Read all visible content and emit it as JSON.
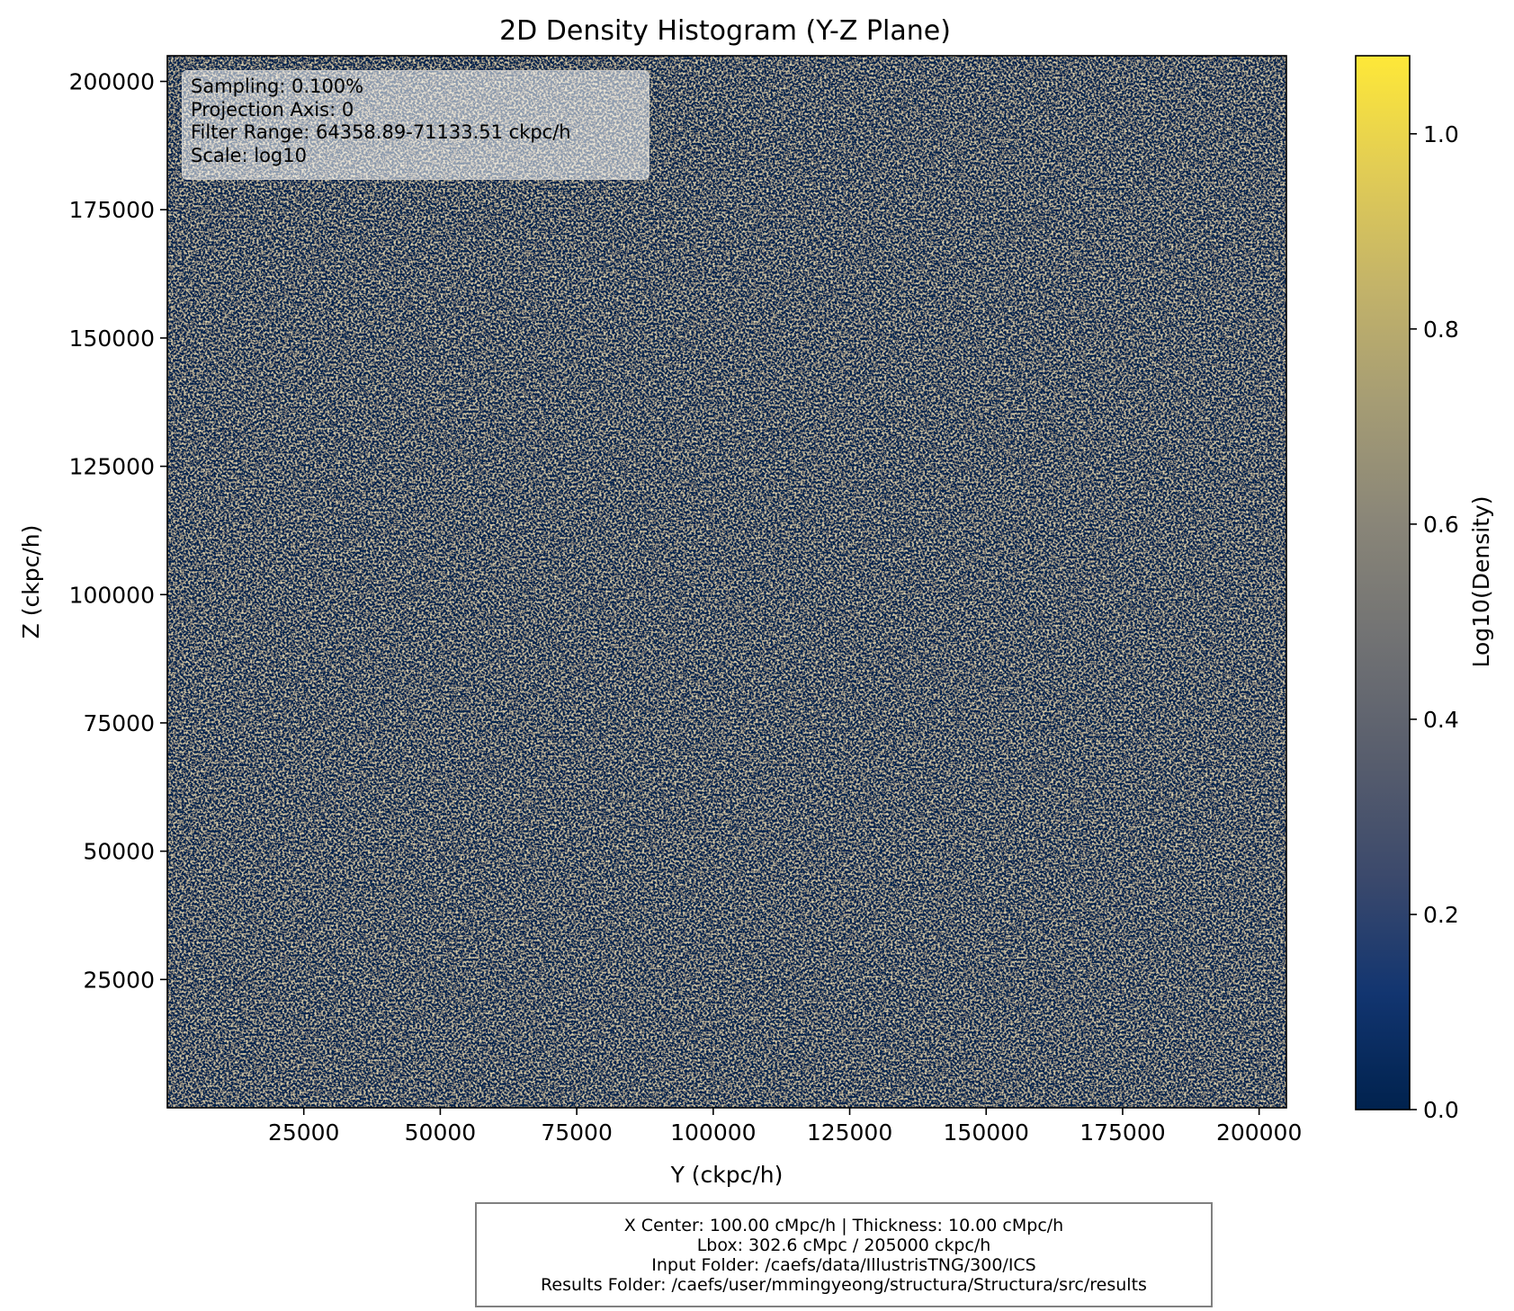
{
  "chart_data": {
    "type": "heatmap",
    "title": "2D Density Histogram (Y-Z Plane)",
    "xlabel": "Y (ckpc/h)",
    "ylabel": "Z (ckpc/h)",
    "xlim": [
      0,
      205000
    ],
    "ylim": [
      0,
      205000
    ],
    "x_ticks": [
      25000,
      50000,
      75000,
      100000,
      125000,
      150000,
      175000,
      200000
    ],
    "y_ticks": [
      25000,
      50000,
      75000,
      100000,
      125000,
      150000,
      175000,
      200000
    ],
    "x_tick_labels": [
      "25000",
      "50000",
      "75000",
      "100000",
      "125000",
      "150000",
      "175000",
      "200000"
    ],
    "y_tick_labels": [
      "25000",
      "50000",
      "75000",
      "100000",
      "125000",
      "150000",
      "175000",
      "200000"
    ],
    "colorbar": {
      "label": "Log10(Density)",
      "range": [
        0,
        1.08
      ],
      "ticks": [
        0.0,
        0.2,
        0.4,
        0.6,
        0.8,
        1.0
      ],
      "tick_labels": [
        "0.0",
        "0.2",
        "0.4",
        "0.6",
        "0.8",
        "1.0"
      ],
      "colormap": "cividis",
      "colors": [
        "#00224e",
        "#123570",
        "#3b496c",
        "#575d6d",
        "#707173",
        "#8a8678",
        "#a59c74",
        "#c3b369",
        "#e1cc55",
        "#fee838"
      ]
    },
    "grid": false,
    "distribution": "dense noisy field; cells mostly alternate between the lowest level (0.0) and the middle-upper range (~0.6-0.85), with occasional brighter cells up to ~1.0"
  },
  "annotation": {
    "lines": [
      "Sampling: 0.100%",
      "Projection Axis: 0",
      "Filter Range: 64358.89-71133.51 ckpc/h",
      "Scale: log10"
    ]
  },
  "info_box": {
    "lines": [
      "X Center: 100.00 cMpc/h | Thickness: 10.00 cMpc/h",
      "Lbox: 302.6 cMpc / 205000 ckpc/h",
      "Input Folder: /caefs/data/IllustrisTNG/300/ICS",
      "Results Folder: /caefs/user/mmingyeong/structura/Structura/src/results"
    ]
  }
}
